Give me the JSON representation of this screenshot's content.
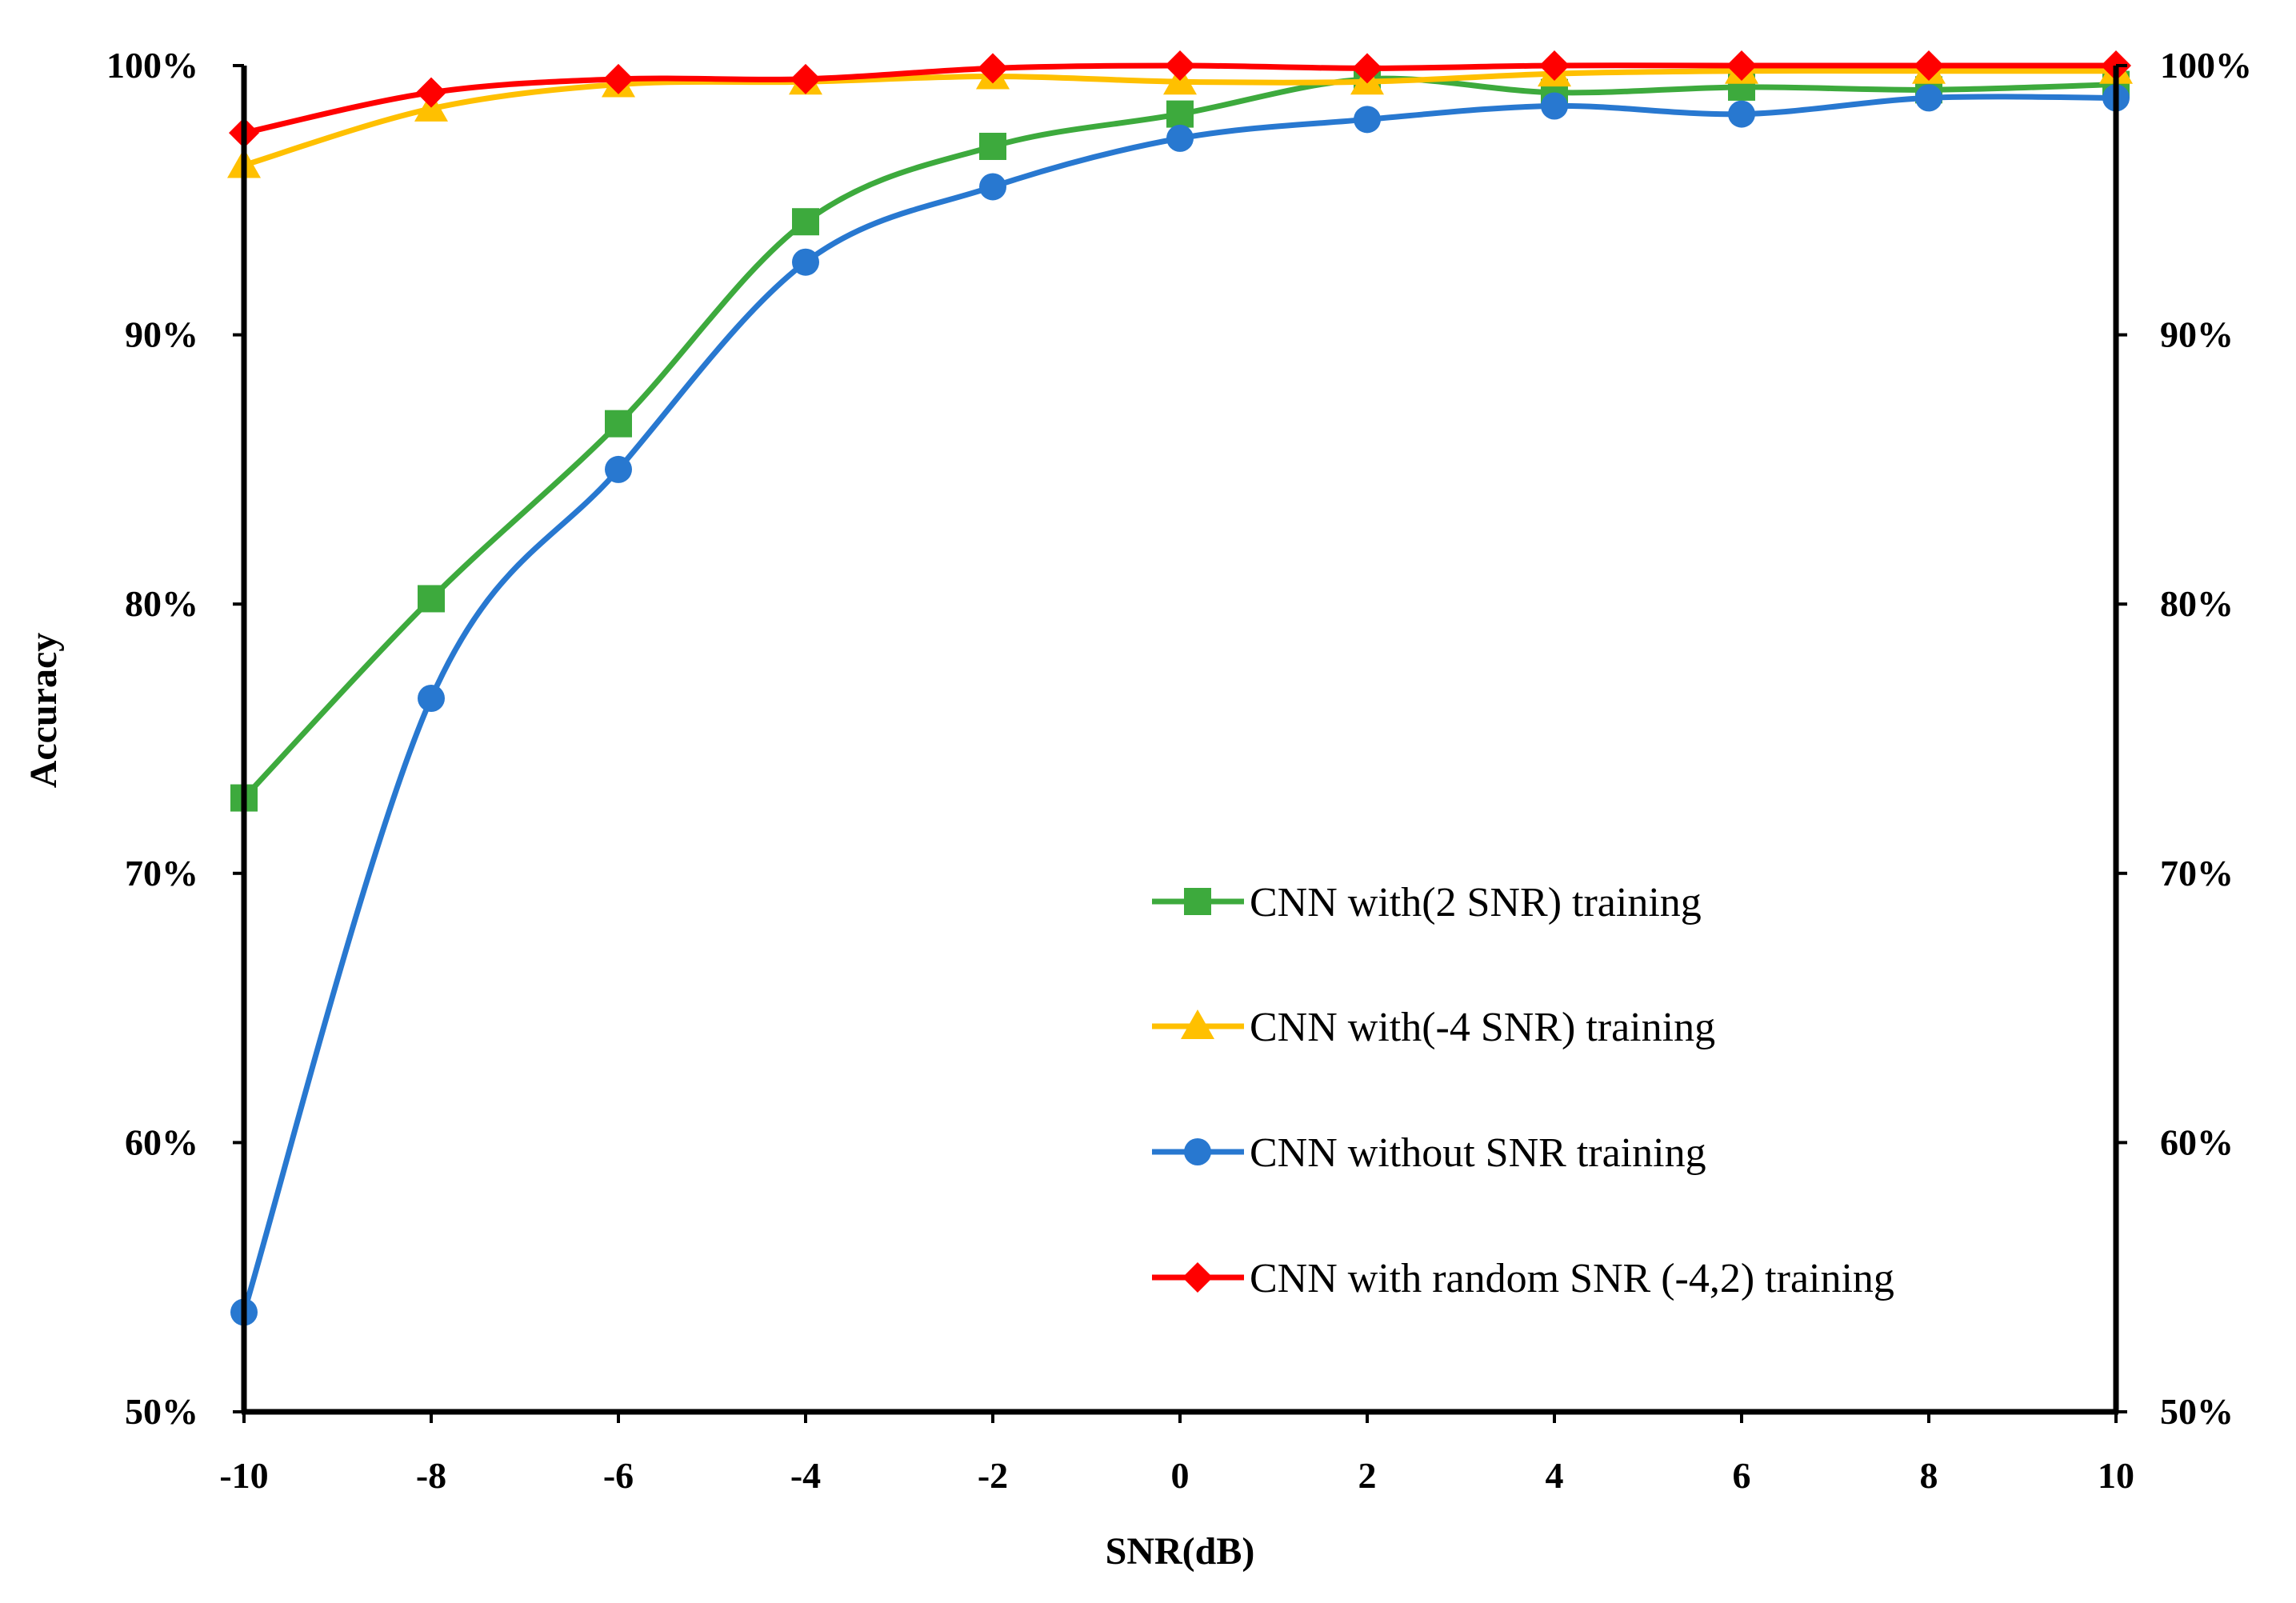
{
  "chart_data": {
    "type": "line",
    "title": "",
    "xlabel": "SNR(dB)",
    "ylabel": "Accuracy",
    "x": [
      -10,
      -8,
      -6,
      -4,
      -2,
      0,
      2,
      4,
      6,
      8,
      10
    ],
    "xlim": [
      -10,
      10
    ],
    "ylim": [
      50,
      100
    ],
    "x_ticks": [
      "-10",
      "-8",
      "-6",
      "-4",
      "-2",
      "0",
      "2",
      "4",
      "6",
      "8",
      "10"
    ],
    "y_ticks_left": [
      "50%",
      "60%",
      "70%",
      "80%",
      "90%",
      "100%"
    ],
    "y_ticks_right": [
      "50%",
      "60%",
      "70%",
      "80%",
      "90%",
      "100%"
    ],
    "y_tick_values": [
      50,
      60,
      70,
      80,
      90,
      100
    ],
    "grid": false,
    "legend_position": "lower-right",
    "series": [
      {
        "name": "CNN with(2 SNR) training",
        "color": "#3DAA3D",
        "marker": "square",
        "values": [
          72.8,
          80.2,
          86.7,
          94.2,
          97.0,
          98.2,
          99.5,
          99.0,
          99.2,
          99.1,
          99.3
        ]
      },
      {
        "name": "CNN with(-4 SNR) training",
        "color": "#FFC000",
        "marker": "triangle",
        "values": [
          96.3,
          98.4,
          99.3,
          99.4,
          99.6,
          99.4,
          99.4,
          99.7,
          99.8,
          99.8,
          99.8
        ]
      },
      {
        "name": "CNN without SNR training",
        "color": "#2878D0",
        "marker": "circle",
        "values": [
          53.7,
          76.5,
          85.0,
          92.7,
          95.5,
          97.3,
          98.0,
          98.5,
          98.2,
          98.8,
          98.8
        ]
      },
      {
        "name": "CNN with random SNR (-4,2) training",
        "color": "#FF0000",
        "marker": "diamond",
        "values": [
          97.5,
          99.0,
          99.5,
          99.5,
          99.9,
          100.0,
          99.9,
          100.0,
          100.0,
          100.0,
          100.0
        ]
      }
    ]
  }
}
